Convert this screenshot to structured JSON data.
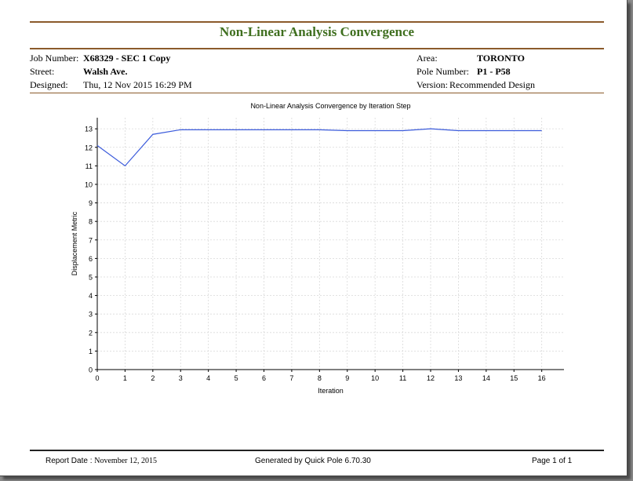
{
  "report": {
    "title": "Non-Linear Analysis Convergence",
    "job_number_label": "Job Number:",
    "job_number": "X68329 - SEC 1 Copy",
    "street_label": "Street:",
    "street": "Walsh Ave.",
    "designed_label": "Designed:",
    "designed": "Thu, 12 Nov 2015 16:29 PM",
    "area_label": "Area:",
    "area": "TORONTO",
    "pole_label": "Pole Number:",
    "pole": "P1 - P58",
    "version_label": "Version:",
    "version": "Recommended Design"
  },
  "footer": {
    "report_date_label": "Report Date :",
    "report_date": "November 12, 2015",
    "generated": "Generated by Quick Pole 6.70.30",
    "page": "Page 1 of 1"
  },
  "colors": {
    "title_green": "#3f6f1f",
    "rule_brown": "#8b5a2b",
    "series_blue": "#3b5bdb"
  },
  "chart_data": {
    "type": "line",
    "title": "Non-Linear Analysis Convergence by Iteration Step",
    "xlabel": "Iteration",
    "ylabel": "Displacement Metric",
    "x": [
      0,
      1,
      2,
      3,
      4,
      5,
      6,
      7,
      8,
      9,
      10,
      11,
      12,
      13,
      14,
      15,
      16
    ],
    "series": [
      {
        "values": [
          12.1,
          11.0,
          12.7,
          12.95,
          12.95,
          12.95,
          12.95,
          12.95,
          12.95,
          12.9,
          12.9,
          12.9,
          13.0,
          12.9,
          12.9,
          12.9,
          12.9
        ]
      }
    ],
    "xlim": [
      0,
      16.8
    ],
    "ylim": [
      0,
      13.6
    ],
    "xticks": [
      "0",
      "1",
      "2",
      "3",
      "4",
      "5",
      "6",
      "7",
      "8",
      "9",
      "10",
      "11",
      "12",
      "13",
      "14",
      "15",
      "16"
    ],
    "yticks": [
      "0",
      "1",
      "2",
      "3",
      "4",
      "5",
      "6",
      "7",
      "8",
      "9",
      "10",
      "11",
      "12",
      "13"
    ],
    "grid": true
  }
}
